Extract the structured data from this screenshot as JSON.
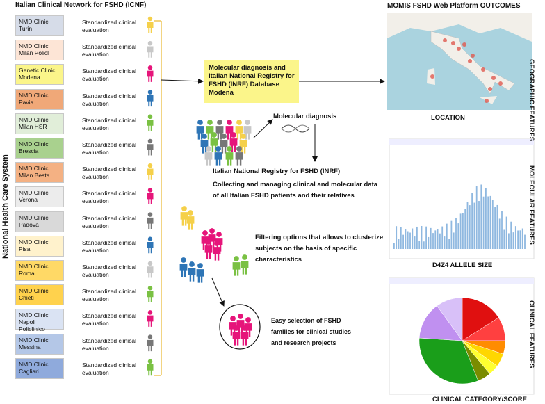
{
  "title": "Italian Clinical Network for FSHD (ICNF)",
  "side_label": "National Health Care System",
  "clinics": [
    {
      "name": "NMD Clinic Turin",
      "evaluation": "Standardized clinical evaluation"
    },
    {
      "name": "NMD Clinic Milan Policl",
      "evaluation": "Standardized clinical evaluation"
    },
    {
      "name": "Genetic Clinic Modena",
      "evaluation": "Standardized clinical evaluation"
    },
    {
      "name": "NMD Clinic Pavia",
      "evaluation": "Standardized clinical evaluation"
    },
    {
      "name": "NMD Clinic Milan HSR",
      "evaluation": "Standardized clinical evaluation"
    },
    {
      "name": "NMD Clinic Brescia",
      "evaluation": "Standardized clinical evaluation"
    },
    {
      "name": "NMD Clinic Milan Besta",
      "evaluation": "Standardized clinical evaluation"
    },
    {
      "name": "NMD Clinic Verona",
      "evaluation": "Standardized clinical evaluation"
    },
    {
      "name": "NMD Clinic Padova",
      "evaluation": "Standardized clinical evaluation"
    },
    {
      "name": "NMD Clinic Pisa",
      "evaluation": "Standardized clinical evaluation"
    },
    {
      "name": "NMD Clinic Roma",
      "evaluation": "Standardized clinical evaluation"
    },
    {
      "name": "NMD Clinic Chieti",
      "evaluation": "Standardized clinical evaluation"
    },
    {
      "name": "NMD Clinic Napoli Policlinico",
      "evaluation": "Standardized clinical evaluation"
    },
    {
      "name": "NMD Clinic Messina",
      "evaluation": "Standardized clinical evaluation"
    },
    {
      "name": "NMD Clinic Cagliari",
      "evaluation": "Standardized clinical evaluation"
    }
  ],
  "center": {
    "database_box": "Molecular diagnosis and Italian National Registry for FSHD (INRF) Database Modena",
    "molecular_diagnosis": "Molecular diagnosis",
    "registry_title": "Italian National Registry for FSHD (INRF)",
    "registry_text": "Collecting and managing clinical and molecular data of all Italian FSHD patients and their relatives",
    "filtering": "Filtering options that allows to clusterize subjects on the basis of specific characteristics",
    "selection": "Easy selection of FSHD families for clinical studies and research projects"
  },
  "outcomes": {
    "title": "MOMIS FSHD Web Platform OUTCOMES",
    "location": "LOCATION",
    "allele": "D4Z4 ALLELE SIZE",
    "clinical": "CLINICAL CATEGORY/SCORE",
    "geographic_features": "GEOGRAPHIC FEATURES",
    "molecular_features": "MOLECULAR FEATURES",
    "clinical_features": "CLINICAL FEATURES"
  }
}
